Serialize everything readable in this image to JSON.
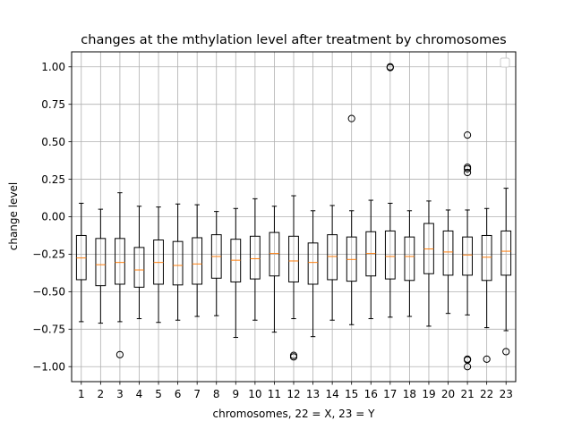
{
  "chart_data": {
    "type": "boxplot",
    "title": "changes at the mthylation level after treatment by chromosomes",
    "xlabel": "chromosomes, 22 = X, 23 = Y",
    "ylabel": "change level",
    "ylim": [
      -1.1,
      1.1
    ],
    "yticks": [
      -1.0,
      -0.75,
      -0.5,
      -0.25,
      0.0,
      0.25,
      0.5,
      0.75,
      1.0
    ],
    "ytick_labels": [
      "−1.00",
      "−0.75",
      "−0.50",
      "−0.25",
      "0.00",
      "0.25",
      "0.50",
      "0.75",
      "1.00"
    ],
    "grid": true,
    "legend": "top-right (empty)",
    "colors": {
      "box": "#000000",
      "median": "#ff7f0e",
      "grid": "#b0b0b0"
    },
    "categories": [
      "1",
      "2",
      "3",
      "4",
      "5",
      "6",
      "7",
      "8",
      "9",
      "10",
      "11",
      "12",
      "13",
      "14",
      "15",
      "16",
      "17",
      "18",
      "19",
      "20",
      "21",
      "22",
      "23"
    ],
    "boxes": [
      {
        "whislo": -0.7,
        "q1": -0.42,
        "med": -0.275,
        "q3": -0.125,
        "whishi": 0.09,
        "fliers": []
      },
      {
        "whislo": -0.71,
        "q1": -0.46,
        "med": -0.32,
        "q3": -0.145,
        "whishi": 0.05,
        "fliers": []
      },
      {
        "whislo": -0.7,
        "q1": -0.45,
        "med": -0.305,
        "q3": -0.145,
        "whishi": 0.16,
        "fliers": [
          -0.92
        ]
      },
      {
        "whislo": -0.68,
        "q1": -0.47,
        "med": -0.355,
        "q3": -0.205,
        "whishi": 0.07,
        "fliers": []
      },
      {
        "whislo": -0.705,
        "q1": -0.45,
        "med": -0.305,
        "q3": -0.155,
        "whishi": 0.065,
        "fliers": []
      },
      {
        "whislo": -0.69,
        "q1": -0.455,
        "med": -0.325,
        "q3": -0.165,
        "whishi": 0.085,
        "fliers": []
      },
      {
        "whislo": -0.665,
        "q1": -0.45,
        "med": -0.315,
        "q3": -0.14,
        "whishi": 0.08,
        "fliers": []
      },
      {
        "whislo": -0.66,
        "q1": -0.41,
        "med": -0.265,
        "q3": -0.12,
        "whishi": 0.035,
        "fliers": []
      },
      {
        "whislo": -0.805,
        "q1": -0.435,
        "med": -0.29,
        "q3": -0.15,
        "whishi": 0.055,
        "fliers": []
      },
      {
        "whislo": -0.69,
        "q1": -0.415,
        "med": -0.28,
        "q3": -0.13,
        "whishi": 0.12,
        "fliers": []
      },
      {
        "whislo": -0.77,
        "q1": -0.395,
        "med": -0.245,
        "q3": -0.105,
        "whishi": 0.07,
        "fliers": []
      },
      {
        "whislo": -0.68,
        "q1": -0.435,
        "med": -0.295,
        "q3": -0.13,
        "whishi": 0.14,
        "fliers": [
          -0.925,
          -0.935
        ]
      },
      {
        "whislo": -0.8,
        "q1": -0.45,
        "med": -0.305,
        "q3": -0.175,
        "whishi": 0.04,
        "fliers": []
      },
      {
        "whislo": -0.69,
        "q1": -0.42,
        "med": -0.265,
        "q3": -0.12,
        "whishi": 0.075,
        "fliers": []
      },
      {
        "whislo": -0.72,
        "q1": -0.43,
        "med": -0.285,
        "q3": -0.135,
        "whishi": 0.04,
        "fliers": [
          0.655
        ]
      },
      {
        "whislo": -0.68,
        "q1": -0.395,
        "med": -0.245,
        "q3": -0.1,
        "whishi": 0.11,
        "fliers": []
      },
      {
        "whislo": -0.67,
        "q1": -0.415,
        "med": -0.265,
        "q3": -0.095,
        "whishi": 0.09,
        "fliers": [
          1.0,
          0.995
        ]
      },
      {
        "whislo": -0.665,
        "q1": -0.425,
        "med": -0.265,
        "q3": -0.135,
        "whishi": 0.04,
        "fliers": []
      },
      {
        "whislo": -0.73,
        "q1": -0.38,
        "med": -0.215,
        "q3": -0.045,
        "whishi": 0.105,
        "fliers": []
      },
      {
        "whislo": -0.645,
        "q1": -0.39,
        "med": -0.235,
        "q3": -0.095,
        "whishi": 0.045,
        "fliers": []
      },
      {
        "whislo": -0.655,
        "q1": -0.39,
        "med": -0.255,
        "q3": -0.135,
        "whishi": 0.045,
        "fliers": [
          0.545,
          0.33,
          0.32,
          0.295,
          -0.95,
          -0.955,
          -1.0
        ]
      },
      {
        "whislo": -0.74,
        "q1": -0.425,
        "med": -0.27,
        "q3": -0.125,
        "whishi": 0.055,
        "fliers": [
          -0.95
        ]
      },
      {
        "whislo": -0.76,
        "q1": -0.39,
        "med": -0.23,
        "q3": -0.095,
        "whishi": 0.19,
        "fliers": [
          -0.9
        ]
      }
    ]
  }
}
